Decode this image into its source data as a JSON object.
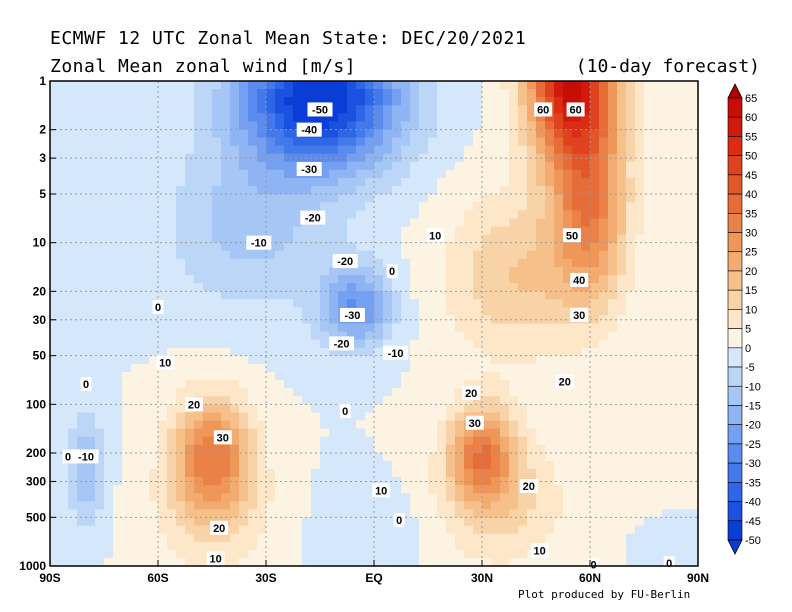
{
  "header": {
    "title_line1": "ECMWF 12 UTC Zonal Mean State: DEC/20/2021",
    "title_line2": "Zonal Mean zonal wind [m/s]",
    "forecast_note": "(10-day forecast)"
  },
  "footer": {
    "credit": "Plot produced by FU-Berlin"
  },
  "chart_data": {
    "type": "heatmap",
    "title": "ECMWF 12 UTC Zonal Mean State: DEC/20/2021",
    "subtitle": "Zonal Mean zonal wind [m/s]",
    "x_axis": {
      "ticks": [
        -90,
        -60,
        -30,
        0,
        30,
        60,
        90
      ],
      "tick_labels": [
        "90S",
        "60S",
        "30S",
        "EQ",
        "30N",
        "60N",
        "90N"
      ],
      "range": [
        -90,
        90
      ]
    },
    "y_axis": {
      "scale": "log",
      "reversed": true,
      "ticks": [
        1,
        2,
        3,
        5,
        10,
        20,
        30,
        50,
        100,
        200,
        300,
        500,
        1000
      ],
      "tick_labels": [
        "1",
        "2",
        "3",
        "5",
        "10",
        "20",
        "30",
        "50",
        "100",
        "200",
        "300",
        "500",
        "1000"
      ],
      "range": [
        1000,
        1
      ]
    },
    "grid": true,
    "colorbar": {
      "position": "right",
      "levels": [
        65,
        60,
        55,
        50,
        45,
        40,
        35,
        30,
        25,
        20,
        15,
        10,
        5,
        0,
        -5,
        -10,
        -15,
        -20,
        -25,
        -30,
        -35,
        -40,
        -45,
        -50
      ],
      "labels": [
        "65",
        "60",
        "55",
        "50",
        "45",
        "40",
        "35",
        "30",
        "25",
        "20",
        "15",
        "10",
        "5",
        "0",
        "-5",
        "-10",
        "-15",
        "-20",
        "-25",
        "-30",
        "-35",
        "-40",
        "-45",
        "-50"
      ]
    },
    "features": [
      {
        "lat": -15,
        "p": 1.5,
        "u": -55
      },
      {
        "lat": 50,
        "p": 1.5,
        "u": 65
      },
      {
        "lat": 58,
        "p": 3,
        "u": 60
      },
      {
        "lat": 60,
        "p": 10,
        "u": 45
      },
      {
        "lat": -10,
        "p": 25,
        "u": -35
      },
      {
        "lat": -45,
        "p": 200,
        "u": 33
      },
      {
        "lat": 30,
        "p": 200,
        "u": 35
      },
      {
        "lat": -75,
        "p": 250,
        "u": -12
      }
    ],
    "contour_labels": [
      {
        "lat": -15,
        "p": 1.5,
        "text": "-50"
      },
      {
        "lat": -18,
        "p": 2,
        "text": "-40"
      },
      {
        "lat": -18,
        "p": 3.5,
        "text": "-30"
      },
      {
        "lat": -17,
        "p": 7,
        "text": "-20"
      },
      {
        "lat": -32,
        "p": 10,
        "text": "-10"
      },
      {
        "lat": -8,
        "p": 13,
        "text": "-20"
      },
      {
        "lat": 5,
        "p": 15,
        "text": "0"
      },
      {
        "lat": -6,
        "p": 28,
        "text": "-30"
      },
      {
        "lat": -9,
        "p": 42,
        "text": "-20"
      },
      {
        "lat": 6,
        "p": 48,
        "text": "-10"
      },
      {
        "lat": 17,
        "p": 9,
        "text": "10"
      },
      {
        "lat": 47,
        "p": 1.5,
        "text": "60"
      },
      {
        "lat": 56,
        "p": 1.5,
        "text": "60"
      },
      {
        "lat": 55,
        "p": 9,
        "text": "50"
      },
      {
        "lat": 57,
        "p": 17,
        "text": "40"
      },
      {
        "lat": 57,
        "p": 28,
        "text": "30"
      },
      {
        "lat": 53,
        "p": 72,
        "text": "20"
      },
      {
        "lat": 27,
        "p": 85,
        "text": "20"
      },
      {
        "lat": 28,
        "p": 130,
        "text": "30"
      },
      {
        "lat": 43,
        "p": 320,
        "text": "20"
      },
      {
        "lat": 2,
        "p": 340,
        "text": "10"
      },
      {
        "lat": 7,
        "p": 520,
        "text": "0"
      },
      {
        "lat": -60,
        "p": 25,
        "text": "0"
      },
      {
        "lat": -58,
        "p": 55,
        "text": "10"
      },
      {
        "lat": -80,
        "p": 75,
        "text": "0"
      },
      {
        "lat": -50,
        "p": 100,
        "text": "20"
      },
      {
        "lat": -42,
        "p": 160,
        "text": "30"
      },
      {
        "lat": -43,
        "p": 580,
        "text": "20"
      },
      {
        "lat": -44,
        "p": 900,
        "text": "10"
      },
      {
        "lat": -8,
        "p": 110,
        "text": "0"
      },
      {
        "lat": -85,
        "p": 210,
        "text": "0"
      },
      {
        "lat": -80,
        "p": 210,
        "text": "-10"
      },
      {
        "lat": 46,
        "p": 800,
        "text": "10"
      },
      {
        "lat": 61,
        "p": 980,
        "text": "0"
      },
      {
        "lat": 82,
        "p": 960,
        "text": "0"
      }
    ]
  }
}
